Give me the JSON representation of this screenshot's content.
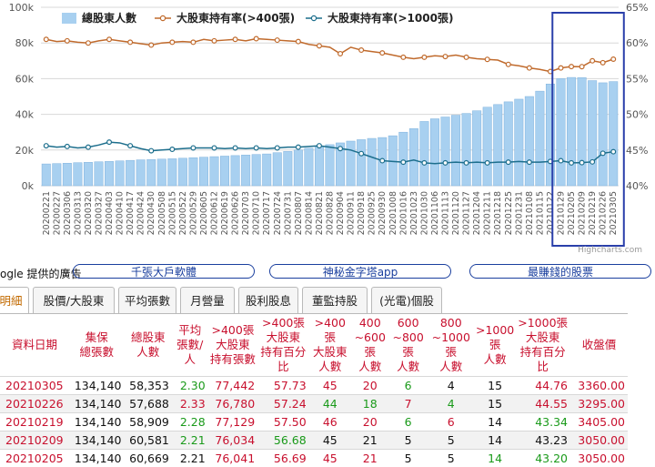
{
  "chart_data": {
    "type": "bar+line",
    "categories": [
      "20200221",
      "20200227",
      "20200306",
      "20200313",
      "20200320",
      "20200327",
      "20200403",
      "20200410",
      "20200417",
      "20200424",
      "20200430",
      "20200508",
      "20200515",
      "20200522",
      "20200529",
      "20200605",
      "20200612",
      "20200619",
      "20200626",
      "20200703",
      "20200710",
      "20200717",
      "20200724",
      "20200731",
      "20200807",
      "20200814",
      "20200821",
      "20200828",
      "20200904",
      "20200911",
      "20200918",
      "20200925",
      "20200930",
      "20201008",
      "20201016",
      "20201023",
      "20201030",
      "20201106",
      "20201113",
      "20201120",
      "20201127",
      "20201204",
      "20201211",
      "20201218",
      "20201225",
      "20201231",
      "20210108",
      "20210115",
      "20210122",
      "20210129",
      "20210205",
      "20210209",
      "20210219",
      "20210226",
      "20210305"
    ],
    "series": [
      {
        "name": "總股東人數",
        "type": "bar",
        "axis": "left",
        "color": "#a8d0f0",
        "values": [
          12200,
          12400,
          12600,
          12900,
          13100,
          13400,
          13600,
          13900,
          14200,
          14500,
          14700,
          14900,
          15100,
          15400,
          15700,
          16000,
          16300,
          16600,
          16900,
          17200,
          17500,
          17800,
          18500,
          19200,
          20000,
          21000,
          22000,
          23000,
          24000,
          25000,
          25800,
          26500,
          27000,
          28000,
          30000,
          32000,
          36000,
          37500,
          38500,
          39500,
          40500,
          42000,
          44000,
          45500,
          47000,
          48500,
          50000,
          53000,
          57000,
          60000,
          60669,
          60581,
          58909,
          57688,
          58353
        ]
      },
      {
        "name": "大股東持有率(>400張)",
        "type": "line",
        "axis": "right",
        "color": "#c06a2c",
        "values": [
          60.5,
          60.2,
          60.3,
          60.1,
          60.0,
          60.3,
          60.5,
          60.3,
          60.1,
          59.9,
          59.7,
          60.0,
          60.1,
          60.2,
          60.1,
          60.5,
          60.3,
          60.4,
          60.5,
          60.3,
          60.6,
          60.5,
          60.4,
          60.3,
          60.2,
          59.8,
          59.6,
          59.4,
          58.5,
          59.4,
          59.0,
          58.8,
          58.6,
          58.3,
          58.0,
          57.8,
          58.0,
          58.2,
          58.1,
          58.3,
          58.0,
          57.8,
          57.7,
          57.6,
          57.0,
          56.8,
          56.5,
          56.3,
          56.0,
          56.5,
          56.69,
          56.68,
          57.5,
          57.24,
          57.73
        ]
      },
      {
        "name": "大股東持有率(>1000張)",
        "type": "line",
        "axis": "right",
        "color": "#1c6e8c",
        "values": [
          45.6,
          45.4,
          45.5,
          45.3,
          45.4,
          45.7,
          46.1,
          46.0,
          45.6,
          45.2,
          44.9,
          45.0,
          45.1,
          45.2,
          45.3,
          45.3,
          45.3,
          45.2,
          45.3,
          45.2,
          45.3,
          45.2,
          45.3,
          45.4,
          45.4,
          45.5,
          45.6,
          45.4,
          45.2,
          45.0,
          44.5,
          44.0,
          43.5,
          43.4,
          43.3,
          43.6,
          43.2,
          43.1,
          43.2,
          43.3,
          43.2,
          43.3,
          43.2,
          43.3,
          43.3,
          43.4,
          43.3,
          43.3,
          43.4,
          43.5,
          43.2,
          43.23,
          43.34,
          44.55,
          44.76
        ]
      }
    ],
    "y_left": {
      "ticks": [
        0,
        20000,
        40000,
        60000,
        80000,
        100000
      ],
      "tick_labels": [
        "0k",
        "20k",
        "40k",
        "60k",
        "80k",
        "100k"
      ],
      "range": [
        0,
        100000
      ]
    },
    "y_right": {
      "ticks": [
        40,
        45,
        50,
        55,
        60,
        65
      ],
      "tick_labels": [
        "40%",
        "45%",
        "50%",
        "55%",
        "60%",
        "65%"
      ],
      "range": [
        40,
        65
      ]
    },
    "legend": {
      "placement": "top-center",
      "items": [
        "總股東人數",
        "大股東持有率(>400張)",
        "大股東持有率(>1000張)"
      ]
    },
    "highlight": {
      "from": "20210129",
      "to": "20210305",
      "color": "#2a3faa"
    },
    "credit": "Highcharts.com"
  },
  "ads": {
    "label": "ogle 提供的廣告",
    "items": [
      "千張大戶軟體",
      "神秘金字塔app",
      "最賺錢的股票"
    ]
  },
  "tabs": [
    "明細",
    "股價/大股東",
    "平均張數",
    "月營量",
    "股利股息",
    "董監持股",
    "(光電)個股"
  ],
  "table": {
    "headers": [
      [
        "資料日期"
      ],
      [
        "集保",
        "總張數"
      ],
      [
        "總股東",
        "人數"
      ],
      [
        "平均",
        "張數/人"
      ],
      [
        ">400張",
        "大股東",
        "持有張數"
      ],
      [
        ">400張",
        "大股東",
        "持有百分比"
      ],
      [
        ">400張",
        "大股東",
        "人數"
      ],
      [
        "400",
        "~600張",
        "人數"
      ],
      [
        "600",
        "~800張",
        "人數"
      ],
      [
        "800",
        "~1000張",
        "人數"
      ],
      [
        ">1000張",
        "人數"
      ],
      [
        ">1000張",
        "大股東",
        "持有百分比"
      ],
      [
        "收盤價"
      ]
    ],
    "rows": [
      [
        "20210305",
        "134,140",
        "58,353",
        "2.30",
        "77,442",
        "57.73",
        "45",
        "20",
        "6",
        "4",
        "15",
        "44.76",
        "3360.00"
      ],
      [
        "20210226",
        "134,140",
        "57,688",
        "2.33",
        "76,780",
        "57.24",
        "44",
        "18",
        "7",
        "4",
        "15",
        "44.55",
        "3295.00"
      ],
      [
        "20210219",
        "134,140",
        "58,909",
        "2.28",
        "77,129",
        "57.50",
        "46",
        "20",
        "6",
        "6",
        "14",
        "43.34",
        "3405.00"
      ],
      [
        "20210209",
        "134,140",
        "60,581",
        "2.21",
        "76,034",
        "56.68",
        "45",
        "21",
        "5",
        "5",
        "14",
        "43.23",
        "3050.00"
      ],
      [
        "20210205",
        "134,140",
        "60,669",
        "2.21",
        "76,041",
        "56.69",
        "45",
        "21",
        "5",
        "5",
        "14",
        "43.20",
        "3050.00"
      ]
    ],
    "cell_colors": [
      [
        "date",
        "",
        "",
        "green",
        "red",
        "red",
        "red",
        "red",
        "green",
        "",
        "",
        "red",
        "red"
      ],
      [
        "date",
        "",
        "",
        "red",
        "red",
        "red",
        "green",
        "green",
        "red",
        "green",
        "",
        "red",
        "red"
      ],
      [
        "date",
        "",
        "",
        "green",
        "red",
        "red",
        "red",
        "red",
        "green",
        "red",
        "",
        "green",
        "red"
      ],
      [
        "date",
        "",
        "",
        "green",
        "red",
        "green",
        "",
        "",
        "",
        "",
        "",
        "",
        "red"
      ],
      [
        "date",
        "",
        "",
        "",
        "red",
        "red",
        "red",
        "red",
        "",
        "",
        "green",
        "green",
        "red"
      ]
    ]
  }
}
